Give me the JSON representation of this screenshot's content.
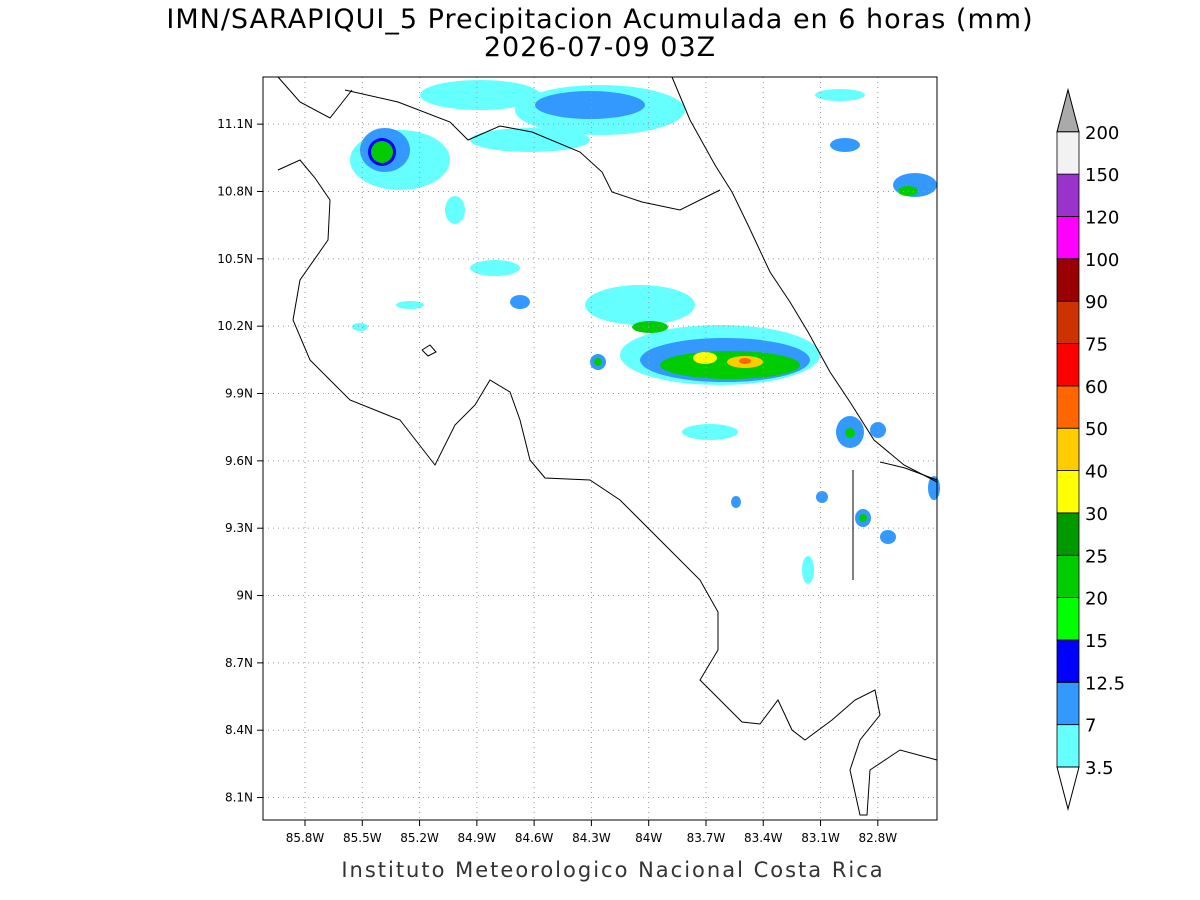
{
  "title": [
    "IMN/SARAPIQUI_5 Precipitacion Acumulada en 6 horas (mm)",
    "2026-07-09 03Z"
  ],
  "map": {
    "lon_range": [
      -86.02,
      -82.49
    ],
    "lat_range": [
      8.0,
      11.31
    ],
    "lon_ticks": [
      {
        "value": -85.8,
        "label": "85.8W"
      },
      {
        "value": -85.5,
        "label": "85.5W"
      },
      {
        "value": -85.2,
        "label": "85.2W"
      },
      {
        "value": -84.9,
        "label": "84.9W"
      },
      {
        "value": -84.6,
        "label": "84.6W"
      },
      {
        "value": -84.3,
        "label": "84.3W"
      },
      {
        "value": -84.0,
        "label": "84W"
      },
      {
        "value": -83.7,
        "label": "83.7W"
      },
      {
        "value": -83.4,
        "label": "83.4W"
      },
      {
        "value": -83.1,
        "label": "83.1W"
      },
      {
        "value": -82.8,
        "label": "82.8W"
      }
    ],
    "lat_ticks": [
      {
        "value": 11.1,
        "label": "11.1N"
      },
      {
        "value": 10.8,
        "label": "10.8N"
      },
      {
        "value": 10.5,
        "label": "10.5N"
      },
      {
        "value": 10.2,
        "label": "10.2N"
      },
      {
        "value": 9.9,
        "label": "9.9N"
      },
      {
        "value": 9.6,
        "label": "9.6N"
      },
      {
        "value": 9.3,
        "label": "9.3N"
      },
      {
        "value": 9.0,
        "label": "9N"
      },
      {
        "value": 8.7,
        "label": "8.7N"
      },
      {
        "value": 8.4,
        "label": "8.4N"
      },
      {
        "value": 8.1,
        "label": "8.1N"
      }
    ]
  },
  "colorbar": {
    "levels": [
      3.5,
      7,
      12.5,
      15,
      20,
      25,
      30,
      40,
      50,
      60,
      75,
      90,
      100,
      120,
      150,
      200
    ],
    "colors": [
      "#66ffff",
      "#3399ff",
      "#0000ff",
      "#00ff00",
      "#00cc00",
      "#009900",
      "#ffff00",
      "#ffcc00",
      "#ff6600",
      "#ff0000",
      "#cc3300",
      "#990000",
      "#ff00ff",
      "#9933cc",
      "#f2f2f2"
    ],
    "under_color": "#ffffff",
    "over_color": "#aaaaaa"
  },
  "footer": "Instituto Meteorologico Nacional Costa Rica"
}
